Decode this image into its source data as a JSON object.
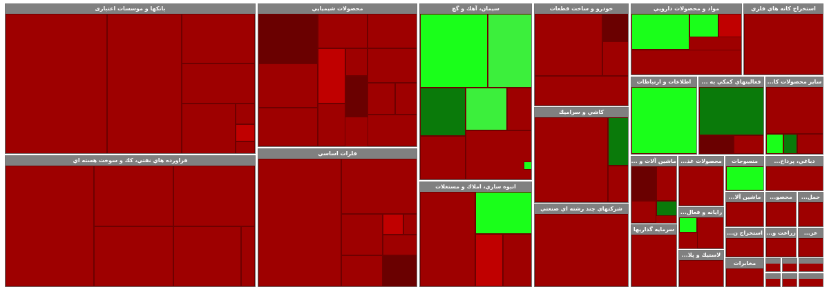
{
  "sectors": [
    {
      "title": "بانکها و موسسات اعتباری"
    },
    {
      "title": "فراورده هاي نفتي، كك و سوخت هسته اي"
    },
    {
      "title": "محصولات شيميايي"
    },
    {
      "title": "فلزات اساسي"
    },
    {
      "title": "سيمان، آهك و گچ"
    },
    {
      "title": "انبوه سازي، املاك و مستغلات"
    },
    {
      "title": "خودرو و ساخت قطعات"
    },
    {
      "title": "كاشي و سراميك"
    },
    {
      "title": "شركتهاي چند رشته اي صنعتي"
    },
    {
      "title": "مواد و محصولات دارويي"
    },
    {
      "title": "استخراج كانه هاي فلزي"
    },
    {
      "title": "اطلاعات و ارتباطات"
    },
    {
      "title": "فعاليتهاي كمكي به ..."
    },
    {
      "title": "ساير محصولات كا..."
    },
    {
      "title": "ماشين آلات و ..."
    },
    {
      "title": "محصولات غذ..."
    },
    {
      "title": "منسوجات"
    },
    {
      "title": "دباغي، پرداخ..."
    },
    {
      "title": "رايانه و فعال..."
    },
    {
      "title": "سرمايه گذاريها"
    },
    {
      "title": "لاستيك و پلا..."
    },
    {
      "title": "ماشين آلا..."
    },
    {
      "title": "محصو..."
    },
    {
      "title": "حمل..."
    },
    {
      "title": "استخراج ن..."
    },
    {
      "title": "زراعت و..."
    },
    {
      "title": "عر..."
    },
    {
      "title": "مخابرات"
    }
  ]
}
